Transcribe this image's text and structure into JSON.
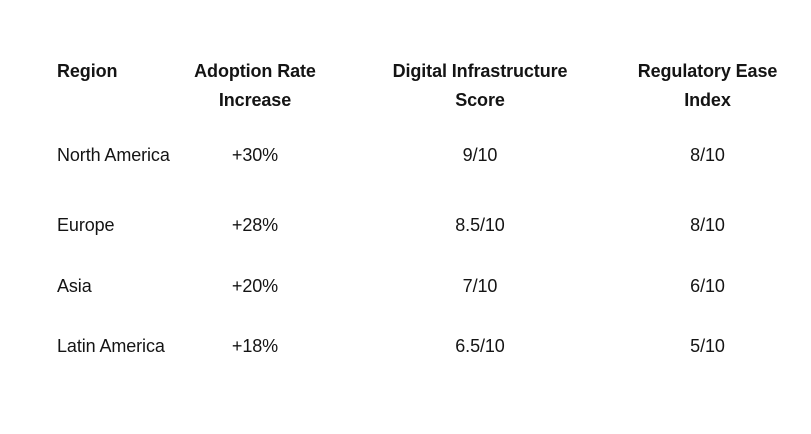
{
  "page": {
    "background": "#ffffff",
    "text_color": "#141414"
  },
  "chart_data": {
    "type": "table",
    "title": "",
    "columns": [
      "Region",
      "Adoption Rate Increase",
      "Digital Infrastructure Score",
      "Regulatory Ease Index"
    ],
    "column_headers": [
      {
        "line1": "Region",
        "line2": ""
      },
      {
        "line1": "Adoption Rate",
        "line2": "Increase"
      },
      {
        "line1": "Digital Infrastructure",
        "line2": "Score"
      },
      {
        "line1": "Regulatory Ease",
        "line2": "Index"
      }
    ],
    "rows": [
      [
        "North America",
        "+30%",
        "9/10",
        "8/10"
      ],
      [
        "Europe",
        "+28%",
        "8.5/10",
        "8/10"
      ],
      [
        "Asia",
        "+20%",
        "7/10",
        "6/10"
      ],
      [
        "Latin America",
        "+18%",
        "6.5/10",
        "5/10"
      ]
    ],
    "numeric": {
      "regions": [
        "North America",
        "Europe",
        "Asia",
        "Latin America"
      ],
      "adoption_rate_increase_pct": [
        30,
        28,
        20,
        18
      ],
      "digital_infrastructure_score": [
        9,
        8.5,
        7,
        6.5
      ],
      "regulatory_ease_index": [
        8,
        8,
        6,
        5
      ],
      "score_scale": 10
    },
    "layout": {
      "gridlines": false,
      "header_style": "bold",
      "column_alignment": [
        "left",
        "center",
        "center",
        "center"
      ]
    }
  }
}
